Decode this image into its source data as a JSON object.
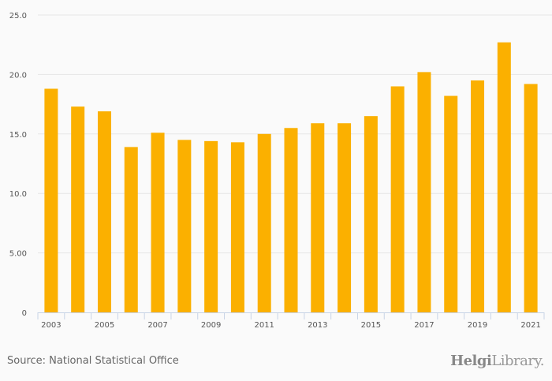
{
  "chart_data": {
    "type": "bar",
    "title": "",
    "xlabel": "",
    "ylabel": "",
    "ylim": [
      0,
      25
    ],
    "yticks": [
      "0",
      "5.00",
      "10.0",
      "15.0",
      "20.0",
      "25.0"
    ],
    "ytick_values": [
      0,
      5,
      10,
      15,
      20,
      25
    ],
    "categories": [
      "2003",
      "2004",
      "2005",
      "2006",
      "2007",
      "2008",
      "2009",
      "2010",
      "2011",
      "2012",
      "2013",
      "2014",
      "2015",
      "2016",
      "2017",
      "2018",
      "2019",
      "2020",
      "2021"
    ],
    "xtick_labels": [
      "2003",
      "",
      "2005",
      "",
      "2007",
      "",
      "2009",
      "",
      "2011",
      "",
      "2013",
      "",
      "2015",
      "",
      "2017",
      "",
      "2019",
      "",
      "2021"
    ],
    "values": [
      18.8,
      17.3,
      16.9,
      13.9,
      15.1,
      14.5,
      14.4,
      14.3,
      15.0,
      15.5,
      15.9,
      15.9,
      16.5,
      19.0,
      20.2,
      18.2,
      19.5,
      22.7,
      19.2
    ],
    "bar_color": "#fbb000",
    "grid": true,
    "legend": "none"
  },
  "footer": {
    "source": "Source: National Statistical Office",
    "logo_text": "HelgiLibrary.",
    "logo_bold": "Helgi",
    "logo_rest": "Library."
  }
}
